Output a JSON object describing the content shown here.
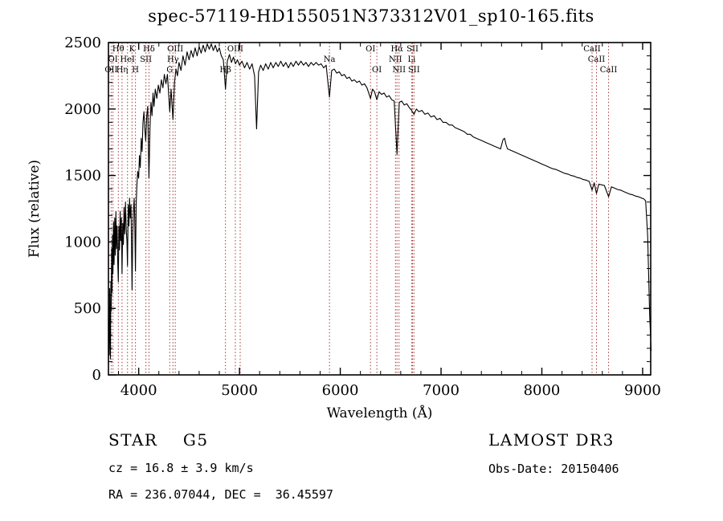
{
  "footer": {
    "left": [
      "STAR    G5",
      "cz = 16.8 ± 3.9 km/s",
      "RA = 236.07044, DEC =  36.45597"
    ],
    "right": [
      "LAMOST DR3",
      "Obs-Date: 20150406"
    ]
  },
  "chart_data": {
    "type": "line",
    "title": "spec-57119-HD155051N373312V01_sp10-165.fits",
    "xlabel": "Wavelength (Å)",
    "ylabel": "Flux (relative)",
    "xlim": [
      3700,
      9080
    ],
    "ylim": [
      0,
      2500
    ],
    "xticks": [
      4000,
      5000,
      6000,
      7000,
      8000,
      9000
    ],
    "yticks": [
      0,
      500,
      1000,
      1500,
      2000,
      2500
    ],
    "x_minor_step": 200,
    "y_minor_step": 100,
    "grid": false,
    "legend": false,
    "curve_color": "#000000",
    "line_marker_color": "#a23636",
    "spectral_lines": [
      {
        "label": "Hθ",
        "wavelength": 3798,
        "row": 1
      },
      {
        "label": "K",
        "wavelength": 3934,
        "row": 1
      },
      {
        "label": "Hδ",
        "wavelength": 4102,
        "row": 1
      },
      {
        "label": "OIII",
        "wavelength": 4363,
        "row": 1
      },
      {
        "label": "OIII",
        "wavelength": 4959,
        "row": 1
      },
      {
        "label": "",
        "wavelength": 5007,
        "row": 1
      },
      {
        "label": "OI",
        "wavelength": 6300,
        "row": 1
      },
      {
        "label": "Hα",
        "wavelength": 6563,
        "row": 1
      },
      {
        "label": "SII",
        "wavelength": 6717,
        "row": 1
      },
      {
        "label": "CaII",
        "wavelength": 8498,
        "row": 1
      },
      {
        "label": "OI",
        "wavelength": 3745,
        "row": 2
      },
      {
        "label": "HeI",
        "wavelength": 3889,
        "row": 2
      },
      {
        "label": "SII",
        "wavelength": 4072,
        "row": 2
      },
      {
        "label": "Hγ",
        "wavelength": 4340,
        "row": 2
      },
      {
        "label": "Na",
        "wavelength": 5893,
        "row": 2
      },
      {
        "label": "NII",
        "wavelength": 6548,
        "row": 2
      },
      {
        "label": "Li",
        "wavelength": 6708,
        "row": 2
      },
      {
        "label": "CaII",
        "wavelength": 8542,
        "row": 2
      },
      {
        "label": "OII",
        "wavelength": 3727,
        "row": 3
      },
      {
        "label": "Hη",
        "wavelength": 3835,
        "row": 3
      },
      {
        "label": "H",
        "wavelength": 3968,
        "row": 3
      },
      {
        "label": "G",
        "wavelength": 4308,
        "row": 3
      },
      {
        "label": "Hβ",
        "wavelength": 4861,
        "row": 3
      },
      {
        "label": "OI",
        "wavelength": 6363,
        "row": 3
      },
      {
        "label": "NII",
        "wavelength": 6583,
        "row": 3
      },
      {
        "label": "SII",
        "wavelength": 6731,
        "row": 3
      },
      {
        "label": "CaII",
        "wavelength": 8662,
        "row": 3
      }
    ],
    "series": [
      {
        "name": "flux",
        "color": "#000000",
        "points": [
          [
            3700,
            80
          ],
          [
            3704,
            420
          ],
          [
            3708,
            150
          ],
          [
            3712,
            650
          ],
          [
            3716,
            350
          ],
          [
            3720,
            120
          ],
          [
            3724,
            700
          ],
          [
            3728,
            480
          ],
          [
            3732,
            950
          ],
          [
            3736,
            620
          ],
          [
            3740,
            1050
          ],
          [
            3745,
            760
          ],
          [
            3750,
            1150
          ],
          [
            3756,
            830
          ],
          [
            3762,
            1180
          ],
          [
            3768,
            900
          ],
          [
            3774,
            1230
          ],
          [
            3780,
            950
          ],
          [
            3786,
            1120
          ],
          [
            3792,
            860
          ],
          [
            3798,
            700
          ],
          [
            3804,
            1120
          ],
          [
            3810,
            940
          ],
          [
            3816,
            1230
          ],
          [
            3822,
            1010
          ],
          [
            3828,
            1180
          ],
          [
            3835,
            760
          ],
          [
            3842,
            1140
          ],
          [
            3848,
            980
          ],
          [
            3855,
            1260
          ],
          [
            3862,
            1060
          ],
          [
            3869,
            1300
          ],
          [
            3876,
            1100
          ],
          [
            3883,
            1010
          ],
          [
            3889,
            820
          ],
          [
            3896,
            1280
          ],
          [
            3903,
            1120
          ],
          [
            3910,
            1330
          ],
          [
            3917,
            1180
          ],
          [
            3924,
            1280
          ],
          [
            3934,
            640
          ],
          [
            3941,
            1050
          ],
          [
            3948,
            1230
          ],
          [
            3955,
            1330
          ],
          [
            3961,
            1180
          ],
          [
            3968,
            780
          ],
          [
            3975,
            1280
          ],
          [
            3982,
            1430
          ],
          [
            3990,
            1530
          ],
          [
            4000,
            1480
          ],
          [
            4008,
            1650
          ],
          [
            4016,
            1560
          ],
          [
            4025,
            1780
          ],
          [
            4034,
            1680
          ],
          [
            4043,
            1900
          ],
          [
            4052,
            1980
          ],
          [
            4061,
            1850
          ],
          [
            4070,
            1760
          ],
          [
            4080,
            1950
          ],
          [
            4090,
            2020
          ],
          [
            4102,
            1480
          ],
          [
            4112,
            1850
          ],
          [
            4122,
            2050
          ],
          [
            4132,
            1950
          ],
          [
            4142,
            2120
          ],
          [
            4152,
            2020
          ],
          [
            4165,
            2150
          ],
          [
            4180,
            2080
          ],
          [
            4195,
            2180
          ],
          [
            4210,
            2120
          ],
          [
            4225,
            2220
          ],
          [
            4240,
            2160
          ],
          [
            4255,
            2260
          ],
          [
            4270,
            2190
          ],
          [
            4285,
            2260
          ],
          [
            4308,
            1980
          ],
          [
            4322,
            2150
          ],
          [
            4340,
            1920
          ],
          [
            4355,
            2200
          ],
          [
            4370,
            2300
          ],
          [
            4385,
            2250
          ],
          [
            4400,
            2350
          ],
          [
            4420,
            2290
          ],
          [
            4440,
            2400
          ],
          [
            4460,
            2330
          ],
          [
            4480,
            2430
          ],
          [
            4500,
            2370
          ],
          [
            4520,
            2440
          ],
          [
            4540,
            2390
          ],
          [
            4560,
            2460
          ],
          [
            4580,
            2400
          ],
          [
            4600,
            2470
          ],
          [
            4620,
            2420
          ],
          [
            4640,
            2480
          ],
          [
            4660,
            2430
          ],
          [
            4680,
            2490
          ],
          [
            4700,
            2450
          ],
          [
            4720,
            2490
          ],
          [
            4740,
            2440
          ],
          [
            4760,
            2480
          ],
          [
            4780,
            2430
          ],
          [
            4800,
            2460
          ],
          [
            4820,
            2400
          ],
          [
            4840,
            2370
          ],
          [
            4861,
            2150
          ],
          [
            4880,
            2360
          ],
          [
            4900,
            2410
          ],
          [
            4920,
            2350
          ],
          [
            4940,
            2390
          ],
          [
            4960,
            2340
          ],
          [
            4980,
            2370
          ],
          [
            5000,
            2330
          ],
          [
            5025,
            2360
          ],
          [
            5050,
            2310
          ],
          [
            5075,
            2350
          ],
          [
            5100,
            2300
          ],
          [
            5125,
            2340
          ],
          [
            5150,
            2250
          ],
          [
            5170,
            1850
          ],
          [
            5190,
            2280
          ],
          [
            5210,
            2330
          ],
          [
            5235,
            2290
          ],
          [
            5260,
            2340
          ],
          [
            5285,
            2300
          ],
          [
            5310,
            2350
          ],
          [
            5335,
            2310
          ],
          [
            5360,
            2350
          ],
          [
            5385,
            2320
          ],
          [
            5410,
            2360
          ],
          [
            5435,
            2320
          ],
          [
            5460,
            2350
          ],
          [
            5485,
            2310
          ],
          [
            5510,
            2350
          ],
          [
            5535,
            2320
          ],
          [
            5560,
            2360
          ],
          [
            5585,
            2330
          ],
          [
            5610,
            2360
          ],
          [
            5635,
            2330
          ],
          [
            5660,
            2350
          ],
          [
            5685,
            2320
          ],
          [
            5710,
            2350
          ],
          [
            5735,
            2330
          ],
          [
            5760,
            2350
          ],
          [
            5785,
            2330
          ],
          [
            5810,
            2340
          ],
          [
            5835,
            2310
          ],
          [
            5860,
            2330
          ],
          [
            5893,
            2090
          ],
          [
            5915,
            2290
          ],
          [
            5940,
            2300
          ],
          [
            5965,
            2270
          ],
          [
            5990,
            2280
          ],
          [
            6015,
            2250
          ],
          [
            6040,
            2260
          ],
          [
            6065,
            2230
          ],
          [
            6090,
            2240
          ],
          [
            6115,
            2210
          ],
          [
            6140,
            2220
          ],
          [
            6165,
            2200
          ],
          [
            6190,
            2210
          ],
          [
            6215,
            2180
          ],
          [
            6240,
            2190
          ],
          [
            6265,
            2160
          ],
          [
            6300,
            2080
          ],
          [
            6320,
            2150
          ],
          [
            6340,
            2130
          ],
          [
            6363,
            2070
          ],
          [
            6385,
            2130
          ],
          [
            6410,
            2110
          ],
          [
            6435,
            2120
          ],
          [
            6460,
            2090
          ],
          [
            6485,
            2100
          ],
          [
            6510,
            2070
          ],
          [
            6535,
            2060
          ],
          [
            6563,
            1660
          ],
          [
            6585,
            2050
          ],
          [
            6610,
            2060
          ],
          [
            6635,
            2030
          ],
          [
            6660,
            2040
          ],
          [
            6685,
            2010
          ],
          [
            6708,
            1990
          ],
          [
            6731,
            1960
          ],
          [
            6755,
            2000
          ],
          [
            6780,
            1980
          ],
          [
            6810,
            1990
          ],
          [
            6840,
            1960
          ],
          [
            6870,
            1970
          ],
          [
            6900,
            1940
          ],
          [
            6930,
            1950
          ],
          [
            6960,
            1920
          ],
          [
            6990,
            1930
          ],
          [
            7020,
            1900
          ],
          [
            7050,
            1900
          ],
          [
            7080,
            1880
          ],
          [
            7110,
            1880
          ],
          [
            7140,
            1860
          ],
          [
            7170,
            1850
          ],
          [
            7200,
            1840
          ],
          [
            7230,
            1830
          ],
          [
            7260,
            1810
          ],
          [
            7290,
            1810
          ],
          [
            7320,
            1790
          ],
          [
            7350,
            1780
          ],
          [
            7380,
            1770
          ],
          [
            7410,
            1760
          ],
          [
            7440,
            1750
          ],
          [
            7470,
            1740
          ],
          [
            7500,
            1730
          ],
          [
            7530,
            1720
          ],
          [
            7560,
            1710
          ],
          [
            7590,
            1700
          ],
          [
            7615,
            1770
          ],
          [
            7630,
            1780
          ],
          [
            7645,
            1730
          ],
          [
            7660,
            1700
          ],
          [
            7690,
            1690
          ],
          [
            7720,
            1680
          ],
          [
            7750,
            1670
          ],
          [
            7780,
            1660
          ],
          [
            7810,
            1650
          ],
          [
            7840,
            1640
          ],
          [
            7870,
            1630
          ],
          [
            7900,
            1620
          ],
          [
            7930,
            1610
          ],
          [
            7960,
            1600
          ],
          [
            7990,
            1590
          ],
          [
            8020,
            1580
          ],
          [
            8050,
            1570
          ],
          [
            8080,
            1560
          ],
          [
            8110,
            1550
          ],
          [
            8140,
            1545
          ],
          [
            8170,
            1535
          ],
          [
            8200,
            1525
          ],
          [
            8230,
            1515
          ],
          [
            8260,
            1510
          ],
          [
            8290,
            1500
          ],
          [
            8320,
            1495
          ],
          [
            8350,
            1485
          ],
          [
            8380,
            1480
          ],
          [
            8410,
            1470
          ],
          [
            8440,
            1465
          ],
          [
            8470,
            1455
          ],
          [
            8498,
            1390
          ],
          [
            8520,
            1445
          ],
          [
            8542,
            1365
          ],
          [
            8565,
            1435
          ],
          [
            8590,
            1430
          ],
          [
            8620,
            1425
          ],
          [
            8662,
            1340
          ],
          [
            8690,
            1415
          ],
          [
            8720,
            1405
          ],
          [
            8750,
            1395
          ],
          [
            8780,
            1390
          ],
          [
            8810,
            1380
          ],
          [
            8840,
            1370
          ],
          [
            8870,
            1360
          ],
          [
            8900,
            1355
          ],
          [
            8930,
            1345
          ],
          [
            8960,
            1340
          ],
          [
            8990,
            1330
          ],
          [
            9010,
            1325
          ],
          [
            9030,
            1310
          ],
          [
            9050,
            1050
          ],
          [
            9070,
            450
          ],
          [
            9085,
            180
          ]
        ]
      }
    ]
  }
}
